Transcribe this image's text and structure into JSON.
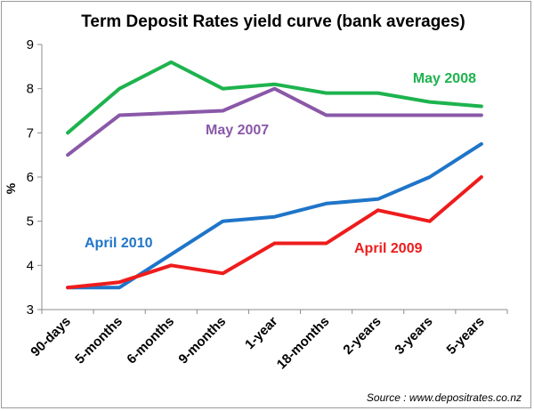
{
  "chart_data": {
    "type": "line",
    "title": "Term Deposit Rates yield curve (bank averages)",
    "xlabel": "",
    "ylabel": "%",
    "ylim": [
      3,
      9
    ],
    "yticks": [
      3,
      4,
      5,
      6,
      7,
      8,
      9
    ],
    "grid": false,
    "categories": [
      "90-days",
      "5-months",
      "6-months",
      "9-months",
      "1-year",
      "18-months",
      "2-years",
      "3-years",
      "5-years"
    ],
    "series": [
      {
        "name": "May 2008",
        "color": "#1db34e",
        "values": [
          7.0,
          8.0,
          8.6,
          8.0,
          8.1,
          7.9,
          7.9,
          7.7,
          7.6
        ]
      },
      {
        "name": "May 2007",
        "color": "#8a58a8",
        "values": [
          6.5,
          7.4,
          7.45,
          7.5,
          8.0,
          7.4,
          7.4,
          7.4,
          7.4
        ]
      },
      {
        "name": "April  2010",
        "color": "#1f75c8",
        "values": [
          3.5,
          3.5,
          4.25,
          5.0,
          5.1,
          5.4,
          5.5,
          6.0,
          6.75
        ]
      },
      {
        "name": "April  2009",
        "color": "#ee1c1c",
        "values": [
          3.5,
          3.62,
          4.0,
          3.82,
          4.5,
          4.5,
          5.25,
          5.0,
          6.0
        ]
      }
    ],
    "source": "Source : www.depositrates.co.nz"
  }
}
